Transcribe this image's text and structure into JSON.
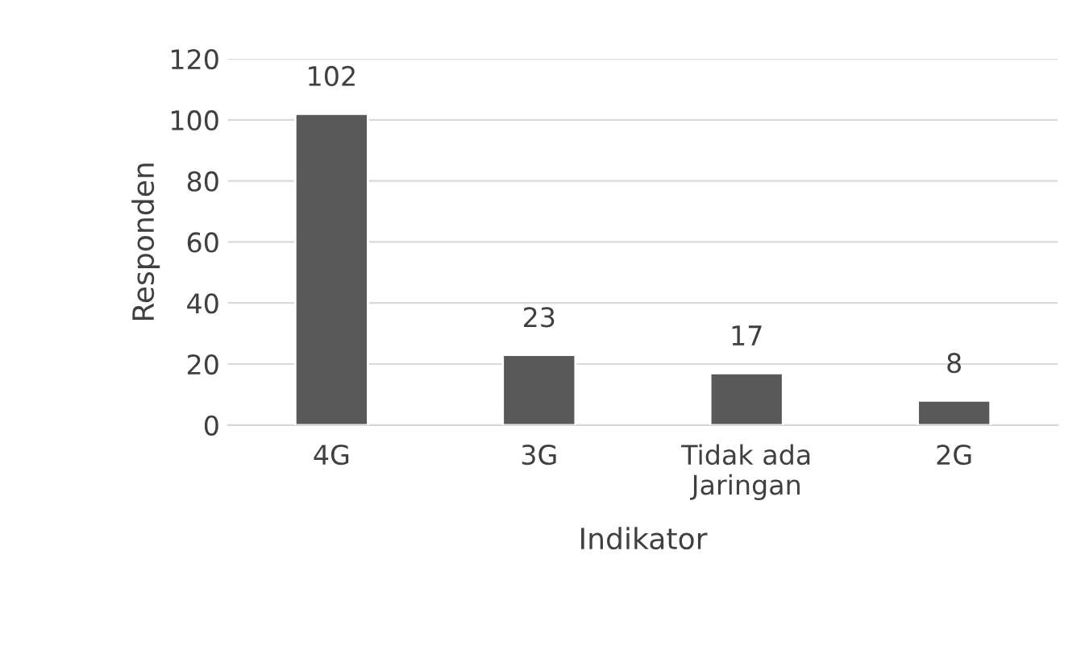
{
  "chart_data": {
    "type": "bar",
    "xlabel": "Indikator",
    "ylabel": "Responden",
    "categories": [
      "4G",
      "3G",
      "Tidak ada\nJaringan",
      "2G"
    ],
    "values": [
      102,
      23,
      17,
      8
    ],
    "color": "#595959",
    "ylim": [
      0,
      120
    ],
    "yticks": [
      0,
      20,
      40,
      60,
      80,
      100,
      120
    ],
    "grid": "y",
    "data_labels": true
  }
}
